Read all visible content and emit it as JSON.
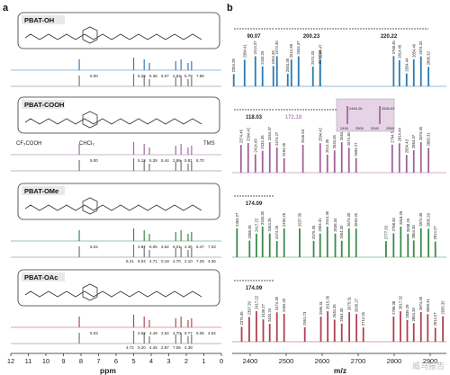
{
  "panel_a": {
    "letter": "a",
    "blocks": [
      {
        "label": "PBAT-OH",
        "peaks_labels": [
          "5.00",
          "5.26",
          "5.36",
          "5.07",
          "2.62",
          "5.79",
          "7.96"
        ]
      },
      {
        "label": "PBAT-COOH",
        "peaks_labels": [
          "5.00",
          "5.13",
          "5.39",
          "5.44",
          "2.86",
          "5.81",
          "8.70"
        ]
      },
      {
        "label": "PBAT-OMe",
        "peaks_labels": [
          "5.02",
          "4.87",
          "6.05",
          "4.62",
          "6.01",
          "4.35",
          "5.47",
          "7.03",
          "6.21",
          "8.04",
          "4.71",
          "0.18",
          "4.70",
          "2.10",
          "7.29",
          "4.36"
        ]
      },
      {
        "label": "PBAT-OAc",
        "peaks_labels": [
          "5.03",
          "4.62",
          "4.49",
          "2.64",
          "4.70",
          "8.77",
          "5.06",
          "4.64",
          "4.72",
          "0.20",
          "4.45",
          "2.87",
          "7.06",
          "4.38"
        ]
      }
    ],
    "solvent_labels": [
      "CF₃COOH",
      "CHCl₃",
      "TMS"
    ],
    "x_label": "ppm",
    "x_ticks": [
      "12",
      "11",
      "10",
      "9",
      "8",
      "7",
      "6",
      "5",
      "4",
      "3",
      "2",
      "1",
      "0"
    ]
  },
  "panel_b": {
    "letter": "b",
    "x_label": "m/z",
    "x_ticks": [
      "2400",
      "2500",
      "2600",
      "2700",
      "2800",
      "2900"
    ],
    "blocks": [
      {
        "color": "#2a7ab0",
        "spacings": [
          "90.07",
          "200.23",
          "220.22"
        ],
        "peaks": [
          "2354.29",
          "2384.41",
          "2414.37",
          "2434.25",
          "2464.33",
          "2474.30",
          "2594.47",
          "2504.36",
          "2514.39",
          "2534.37",
          "2574.33",
          "2594.28",
          "2798.45",
          "2814.46",
          "2834.44",
          "2854.40",
          "2874.32",
          "2895.32"
        ]
      },
      {
        "color": "#a0609a",
        "spacings": [
          "118.03",
          "172.18"
        ],
        "inset_ticks": [
          "2490",
          "2500",
          "2540",
          "2550"
        ],
        "inset_peaks": [
          "2494.26",
          "2546.53"
        ],
        "peaks": [
          "2374.46",
          "2394.42",
          "2414.43",
          "2434.35",
          "2454.37",
          "2474.27",
          "2494.26",
          "2546.53",
          "2594.42",
          "2614.35",
          "2634.35",
          "2654.30",
          "2674.30",
          "2694.27",
          "2794.51",
          "2814.44",
          "2834.43",
          "2854.37",
          "2874.35",
          "2895.31"
        ]
      },
      {
        "color": "#3a8a4a",
        "spacings": [
          "174.09"
        ],
        "peaks": [
          "2363.27",
          "2398.28",
          "2417.22",
          "2434.30",
          "2454.26",
          "2474.26",
          "2494.26",
          "2537.35",
          "2576.35",
          "2594.31",
          "2614.36",
          "2636.34",
          "2654.30",
          "2674.30",
          "2694.26",
          "2777.33",
          "2798.33",
          "2818.29",
          "2838.25",
          "2854.30",
          "2874.35",
          "2895.29",
          "2914.27"
        ]
      },
      {
        "color": "#b04050",
        "spacings": [
          "174.09"
        ],
        "peaks": [
          "2376.35",
          "2397.29",
          "2417.22",
          "2436.27",
          "2454.24",
          "2474.28",
          "2494.20",
          "2551.73",
          "2596.31",
          "2615.36",
          "2634.36",
          "2654.30",
          "2675.31",
          "2695.27",
          "2714.26",
          "2798.38",
          "2817.32",
          "2836.29",
          "2854.33",
          "2874.35",
          "2893.31",
          "2914.27",
          "2935.32"
        ]
      }
    ]
  },
  "watermark": "威马报告"
}
